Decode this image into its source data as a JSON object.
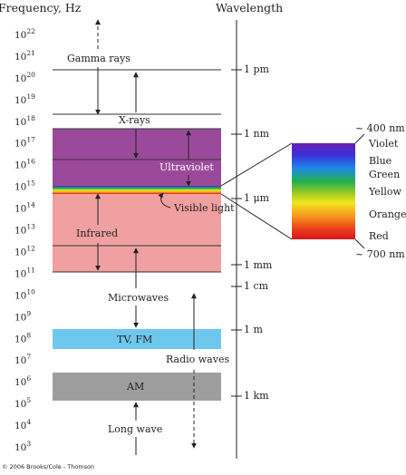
{
  "header": {
    "frequency_label": "Frequency, Hz",
    "wavelength_label": "Wavelength"
  },
  "frequency_axis": {
    "base": "10",
    "exponents": [
      "22",
      "21",
      "20",
      "19",
      "18",
      "17",
      "16",
      "15",
      "14",
      "13",
      "12",
      "11",
      "10",
      "9",
      "8",
      "7",
      "6",
      "5",
      "4",
      "3"
    ]
  },
  "bands": {
    "gamma": "Gamma rays",
    "xray": "X-rays",
    "uv": "Ultraviolet",
    "visible": "Visible light",
    "infrared": "Infrared",
    "microwaves": "Microwaves",
    "tvfm": "TV, FM",
    "radio": "Radio waves",
    "am": "AM",
    "longwave": "Long wave"
  },
  "wavelength_axis": {
    "pm": "1 pm",
    "nm": "1 nm",
    "um": "1 μm",
    "mm": "1 mm",
    "cm": "1 cm",
    "m": "1 m",
    "km": "1 km"
  },
  "spectrum": {
    "top": "~ 400 nm",
    "bottom": "~ 700 nm",
    "colors": [
      "Violet",
      "Blue",
      "Green",
      "Yellow",
      "Orange",
      "Red"
    ]
  },
  "colors": {
    "uv": "#9b4a9b",
    "infrared": "#f0a0a0",
    "tvfm": "#6ec8ee",
    "am": "#9e9e9e"
  },
  "copyright": "© 2006 Brooks/Cole - Thomson"
}
